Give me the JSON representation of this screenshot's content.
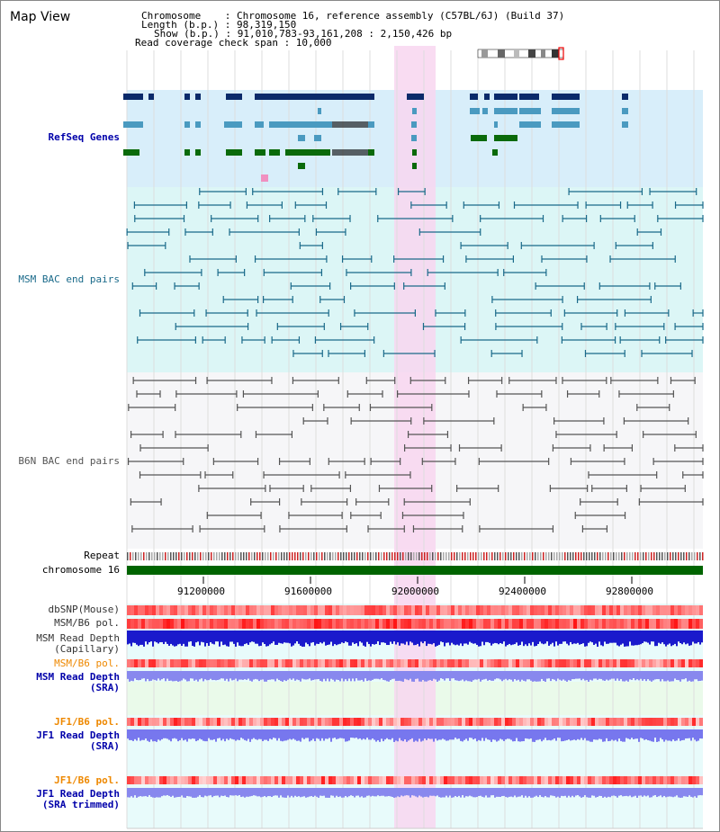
{
  "header": {
    "title": "Map View",
    "chromosome_line": "Chromosome    : Chromosome 16, reference assembly (C57BL/6J) (Build 37)",
    "length_line": "Length (b.p.) : 98,319,150",
    "show_line": "Show (b.p.) : 91,010,783-93,161,208 : 2,150,426 bp",
    "span_line": "Read coverage check span : 10,000"
  },
  "tracks": {
    "refseq": "RefSeq Genes",
    "msm_bac": "MSM BAC end pairs",
    "b6n_bac": "B6N BAC end pairs",
    "repeat": "Repeat",
    "chromosome": "chromosome 16",
    "dbsnp": "dbSNP(Mouse)",
    "msm_b6_pol_1": "MSM/B6 pol.",
    "msm_depth_cap": "MSM Read Depth\n(Capillary)",
    "msm_b6_pol_2": "MSM/B6 pol.",
    "msm_depth_sra": "MSM Read Depth\n(SRA)",
    "jf1_b6_pol_1": "JF1/B6 pol.",
    "jf1_depth_sra": "JF1 Read Depth\n(SRA)",
    "jf1_b6_pol_2": "JF1/B6 pol.",
    "jf1_depth_trim": "JF1 Read Depth\n(SRA trimmed)"
  },
  "axis": {
    "ticks": [
      "91200000",
      "91600000",
      "92000000",
      "92400000",
      "92800000"
    ]
  },
  "colors": {
    "refseq_bg": "#d8eefa",
    "msm_bg": "#dcf6f6",
    "b6n_bg": "#f6f6f8",
    "highlight": "#f8d6f0",
    "chromosome_bar": "#006400",
    "navy_gene": "#0a2a6a",
    "teal_gene": "#4a9ac0",
    "green_gene": "#0a6a0a",
    "msm_line": "#1a6a8a",
    "b6n_line": "#555555",
    "label_blue": "#0000aa",
    "label_orange": "#ee8800",
    "label_dark": "#333333"
  }
}
